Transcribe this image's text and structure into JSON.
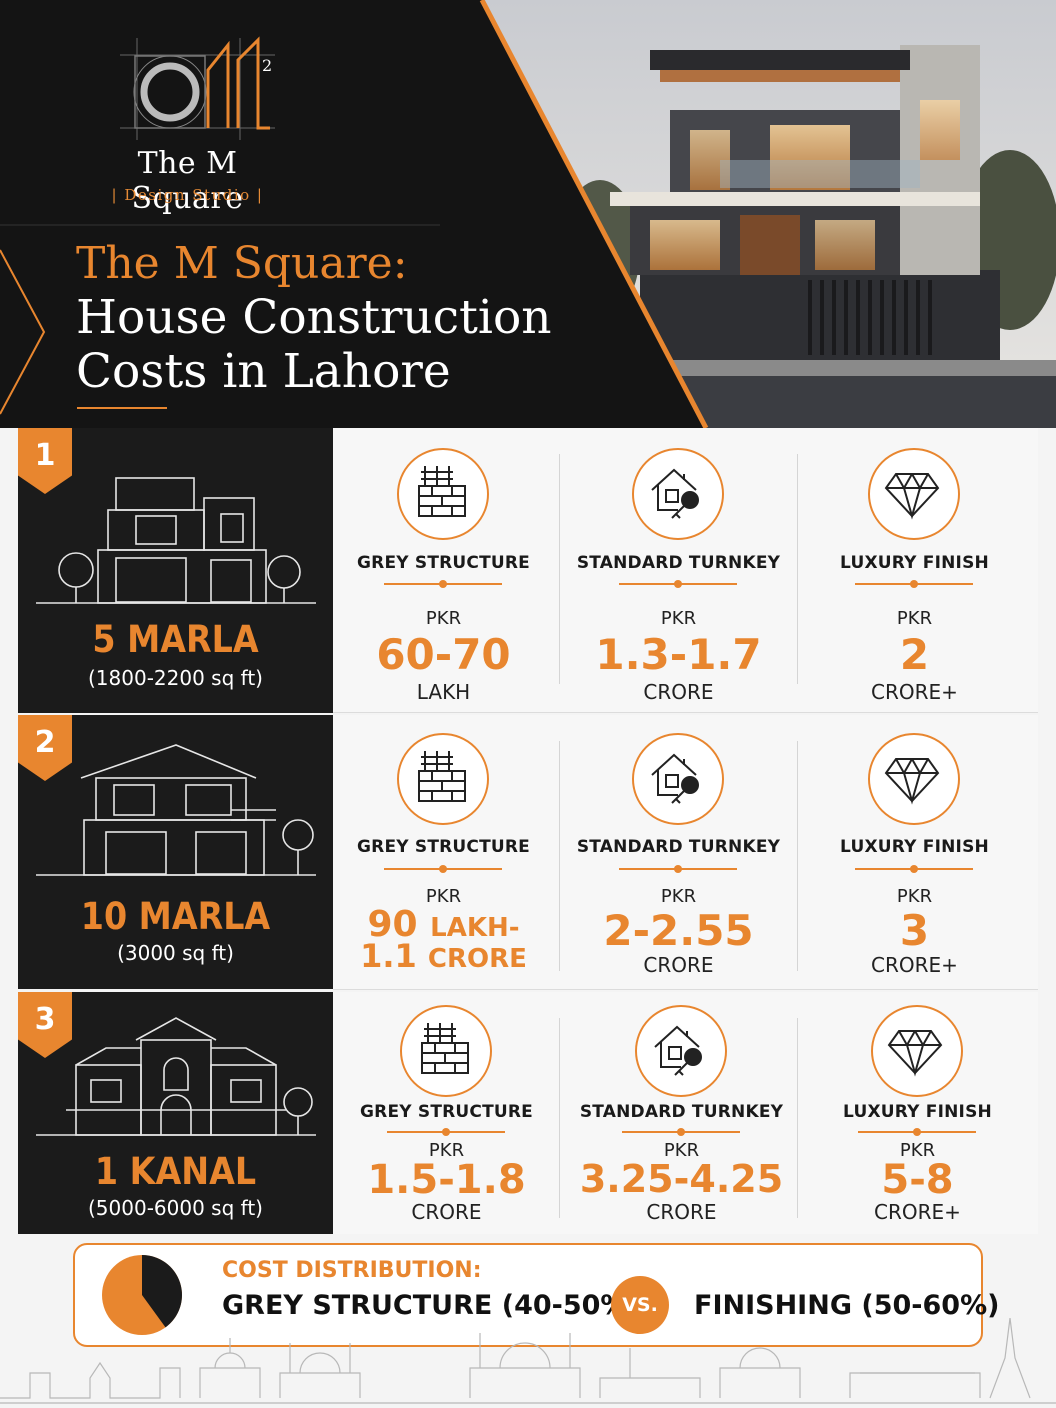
{
  "brand": {
    "name": "The M Square",
    "sub": "| Design Studio |",
    "logo_mark": "M",
    "logo_superscript": "2"
  },
  "title": {
    "line1": "The M Square:",
    "line2": "House Construction",
    "line3": "Costs in Lahore"
  },
  "colors": {
    "accent": "#e8862f",
    "dark": "#1b1b1b",
    "light": "#f7f7f7"
  },
  "rows": [
    {
      "number": "1",
      "size": "5 MARLA",
      "area": "(1800-2200 sq ft)",
      "tiers": [
        {
          "label": "GREY STRUCTURE",
          "pkr": "PKR",
          "price": "60-70",
          "unit": "LAKH",
          "icon": "brick-wall-icon"
        },
        {
          "label": "STANDARD TURNKEY",
          "pkr": "PKR",
          "price": "1.3-1.7",
          "unit": "CRORE",
          "icon": "house-key-icon"
        },
        {
          "label": "LUXURY FINISH",
          "pkr": "PKR",
          "price": "2",
          "unit": "CRORE+",
          "icon": "diamond-icon"
        }
      ]
    },
    {
      "number": "2",
      "size": "10 MARLA",
      "area": "(3000 sq ft)",
      "tiers": [
        {
          "label": "GREY STRUCTURE",
          "pkr": "PKR",
          "price_a": "90",
          "unit_a": "LAKH-",
          "price_b": "1.1",
          "unit_b": "CRORE",
          "icon": "brick-wall-icon"
        },
        {
          "label": "STANDARD TURNKEY",
          "pkr": "PKR",
          "price": "2-2.55",
          "unit": "CRORE",
          "icon": "house-key-icon"
        },
        {
          "label": "LUXURY FINISH",
          "pkr": "PKR",
          "price": "3",
          "unit": "CRORE+",
          "icon": "diamond-icon"
        }
      ]
    },
    {
      "number": "3",
      "size": "1 KANAL",
      "area": "(5000-6000 sq ft)",
      "tiers": [
        {
          "label": "GREY STRUCTURE",
          "pkr": "PKR",
          "price": "1.5-1.8",
          "unit": "CRORE",
          "icon": "brick-wall-icon"
        },
        {
          "label": "STANDARD TURNKEY",
          "pkr": "PKR",
          "price": "3.25-4.25",
          "unit": "CRORE",
          "icon": "house-key-icon"
        },
        {
          "label": "LUXURY FINISH",
          "pkr": "PKR",
          "price": "5-8",
          "unit": "CRORE+",
          "icon": "diamond-icon"
        }
      ]
    }
  ],
  "cost_distribution": {
    "title": "COST DISTRIBUTION:",
    "grey_label": "GREY STRUCTURE",
    "grey_pct": "(40-50%)",
    "vs": "VS.",
    "finish_label": "FINISHING",
    "finish_pct": "(50-60%)",
    "pie_grey_fraction": 0.4,
    "icon": "pie-chart-icon"
  }
}
